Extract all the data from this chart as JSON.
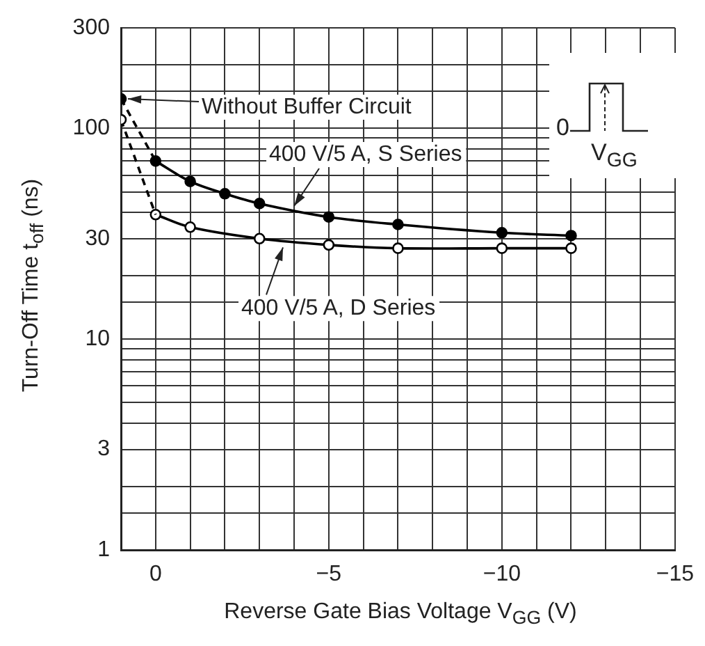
{
  "chart_data": {
    "type": "line",
    "xlabel": "Reverse Gate Bias Voltage  V$_{GG}$  (V)",
    "ylabel": "Turn-Off Time t$_{off}$  (ns)",
    "log": "y",
    "xlim": [
      1,
      -15
    ],
    "xticks": [
      {
        "value": 1,
        "label": null
      },
      0,
      {
        "value": -1,
        "label": null
      },
      {
        "value": -2,
        "label": null
      },
      {
        "value": -3,
        "label": null
      },
      {
        "value": -4,
        "label": null
      },
      -5,
      {
        "value": -6,
        "label": null
      },
      {
        "value": -7,
        "label": null
      },
      {
        "value": -8,
        "label": null
      },
      {
        "value": -9,
        "label": null
      },
      -10,
      {
        "value": -11,
        "label": null
      },
      {
        "value": -12,
        "label": null
      },
      {
        "value": -13,
        "label": null
      },
      {
        "value": -14,
        "label": null
      },
      -15
    ],
    "ylim": [
      1,
      300
    ],
    "yticks": [
      1,
      {
        "value": 1.5,
        "label": null
      },
      {
        "value": 2,
        "label": null
      },
      3,
      {
        "value": 4,
        "label": null
      },
      {
        "value": 5,
        "label": null
      },
      {
        "value": 6,
        "label": null
      },
      {
        "value": 7,
        "label": null
      },
      {
        "value": 8,
        "label": null
      },
      {
        "value": 9,
        "label": null
      },
      10,
      {
        "value": 15,
        "label": null
      },
      {
        "value": 20,
        "label": null
      },
      30,
      {
        "value": 40,
        "label": null
      },
      {
        "value": 50,
        "label": null
      },
      {
        "value": 60,
        "label": null
      },
      {
        "value": 70,
        "label": null
      },
      {
        "value": 80,
        "label": null
      },
      {
        "value": 90,
        "label": null
      },
      100,
      {
        "value": 150,
        "label": null
      },
      {
        "value": 200,
        "label": null
      },
      300
    ],
    "grid": true,
    "legend": false,
    "series": [
      {
        "line_style": "dashed",
        "color": "#000000",
        "x": [
          1,
          0
        ],
        "values": [
          138,
          70
        ]
      },
      {
        "line_style": "dashed",
        "color": "#000000",
        "x": [
          1,
          0
        ],
        "values": [
          110,
          39
        ]
      },
      {
        "name": "400 V/5 A, S Series",
        "line_style": "solid",
        "marker": "circle",
        "color": "#000000",
        "x": [
          0,
          -1,
          -2,
          -3,
          -5,
          -7,
          -10,
          -12
        ],
        "values": [
          70,
          56,
          49,
          44,
          38,
          35,
          32,
          31
        ]
      },
      {
        "name": "400 V/5 A, D Series",
        "line_style": "solid",
        "marker": "circle",
        "color": "#000000",
        "x": [
          0,
          -1,
          -3,
          -5,
          -7,
          -10,
          -12
        ],
        "values": [
          39,
          34,
          30,
          28,
          27,
          27,
          27
        ]
      },
      {
        "type": "scatter",
        "marker": "circle",
        "color": "#000000",
        "x": [
          1
        ],
        "values": [
          138
        ]
      },
      {
        "type": "scatter",
        "marker": "circle",
        "color": "#000000",
        "x": [
          1
        ],
        "values": [
          110
        ]
      }
    ],
    "annotations": [
      {
        "text": "Without Buffer Circuit",
        "x": 1,
        "y": 138
      },
      "0",
      "V$_{GG}$"
    ]
  }
}
